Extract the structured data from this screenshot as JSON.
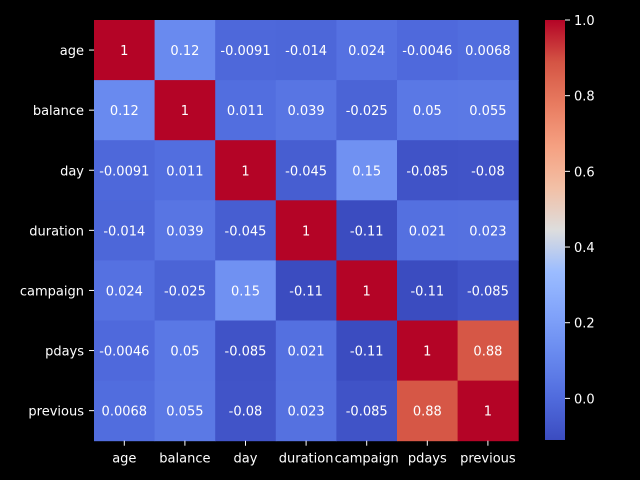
{
  "chart_data": {
    "type": "heatmap",
    "title": "",
    "xlabel": "",
    "ylabel": "",
    "background": "#000000",
    "colormap": "coolwarm",
    "row_labels": [
      "age",
      "balance",
      "day",
      "duration",
      "campaign",
      "pdays",
      "previous"
    ],
    "col_labels": [
      "age",
      "balance",
      "day",
      "duration",
      "campaign",
      "pdays",
      "previous"
    ],
    "values": [
      [
        1,
        0.12,
        -0.0091,
        -0.014,
        0.024,
        -0.0046,
        0.0068
      ],
      [
        0.12,
        1,
        0.011,
        0.039,
        -0.025,
        0.05,
        0.055
      ],
      [
        -0.0091,
        0.011,
        1,
        -0.045,
        0.15,
        -0.085,
        -0.08
      ],
      [
        -0.014,
        0.039,
        -0.045,
        1,
        -0.11,
        0.021,
        0.023
      ],
      [
        0.024,
        -0.025,
        0.15,
        -0.11,
        1,
        -0.11,
        -0.085
      ],
      [
        -0.0046,
        0.05,
        -0.085,
        0.021,
        -0.11,
        1,
        0.88
      ],
      [
        0.0068,
        0.055,
        -0.08,
        0.023,
        -0.085,
        0.88,
        1
      ]
    ],
    "annotations": [
      [
        "1",
        "0.12",
        "-0.0091",
        "-0.014",
        "0.024",
        "-0.0046",
        "0.0068"
      ],
      [
        "0.12",
        "1",
        "0.011",
        "0.039",
        "-0.025",
        "0.05",
        "0.055"
      ],
      [
        "-0.0091",
        "0.011",
        "1",
        "-0.045",
        "0.15",
        "-0.085",
        "-0.08"
      ],
      [
        "-0.014",
        "0.039",
        "-0.045",
        "1",
        "-0.11",
        "0.021",
        "0.023"
      ],
      [
        "0.024",
        "-0.025",
        "0.15",
        "-0.11",
        "1",
        "-0.11",
        "-0.085"
      ],
      [
        "-0.0046",
        "0.05",
        "-0.085",
        "0.021",
        "-0.11",
        "1",
        "0.88"
      ],
      [
        "0.0068",
        "0.055",
        "-0.08",
        "0.023",
        "-0.085",
        "0.88",
        "1"
      ]
    ],
    "colorbar": {
      "range": [
        -0.11,
        1.0
      ],
      "ticks": [
        0.0,
        0.2,
        0.4,
        0.6,
        0.8,
        1.0
      ],
      "tick_labels": [
        "0.0",
        "0.2",
        "0.4",
        "0.6",
        "0.8",
        "1.0"
      ]
    },
    "legend": "right",
    "grid": false
  }
}
